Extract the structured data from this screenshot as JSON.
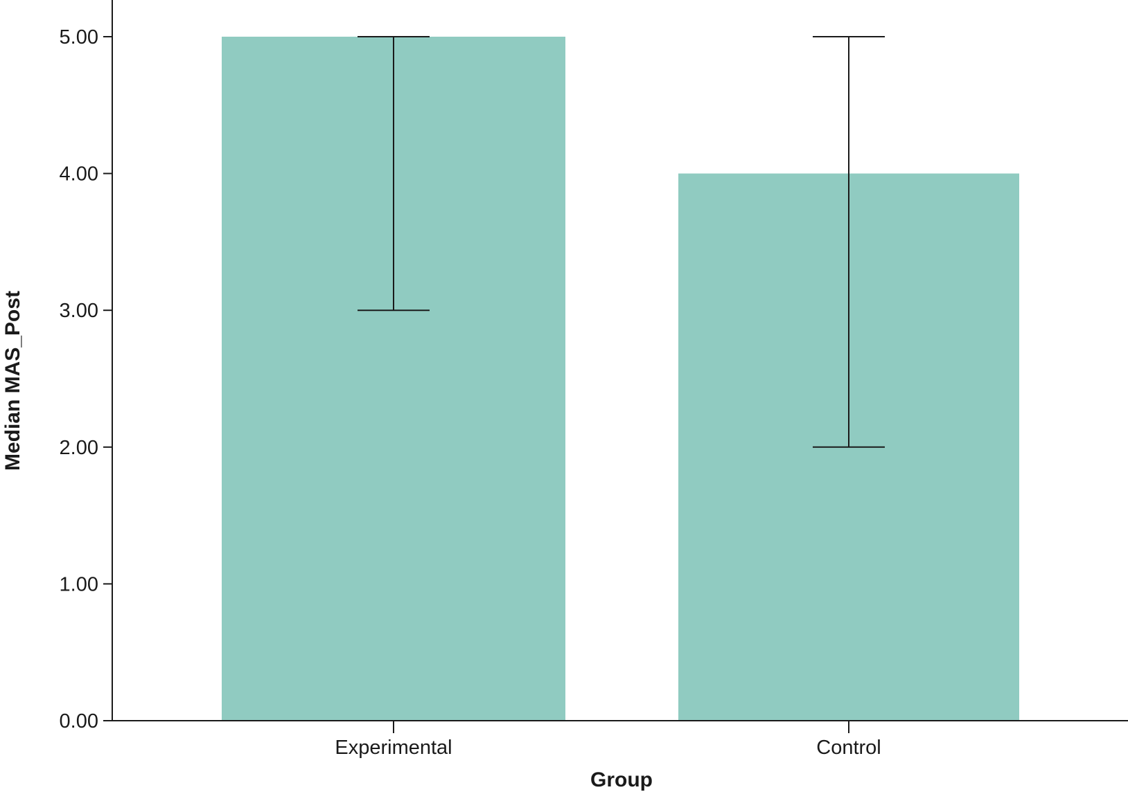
{
  "chart_data": {
    "type": "bar",
    "categories": [
      "Experimental",
      "Control"
    ],
    "values": [
      5.0,
      4.0
    ],
    "error_bars": [
      {
        "low": 3.0,
        "high": 5.0
      },
      {
        "low": 2.0,
        "high": 5.0
      }
    ],
    "xlabel": "Group",
    "ylabel": "Median MAS_Post",
    "ylim": [
      0,
      5.3
    ],
    "yticks": [
      "0.00",
      "1.00",
      "2.00",
      "3.00",
      "4.00",
      "5.00"
    ],
    "grid": false,
    "colors": {
      "bar": "#90cbc1",
      "axis": "#1a1a1a"
    }
  }
}
